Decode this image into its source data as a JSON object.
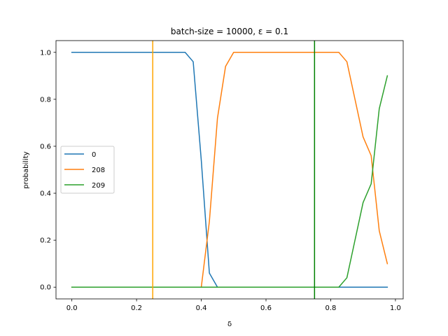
{
  "chart_data": {
    "type": "line",
    "title": "batch-size = 10000, ε = 0.1",
    "xlabel": "δ",
    "ylabel": "probability",
    "xlim": [
      -0.049,
      1.024
    ],
    "ylim": [
      -0.05,
      1.05
    ],
    "xticks": [
      0.0,
      0.2,
      0.4,
      0.6,
      0.8,
      1.0
    ],
    "xtick_labels": [
      "0.0",
      "0.2",
      "0.4",
      "0.6",
      "0.8",
      "1.0"
    ],
    "yticks": [
      0.0,
      0.2,
      0.4,
      0.6,
      0.8,
      1.0
    ],
    "ytick_labels": [
      "0.0",
      "0.2",
      "0.4",
      "0.6",
      "0.8",
      "1.0"
    ],
    "grid": false,
    "legend_position": "center-left",
    "x": [
      0.0,
      0.025,
      0.05,
      0.075,
      0.1,
      0.125,
      0.15,
      0.175,
      0.2,
      0.225,
      0.25,
      0.275,
      0.3,
      0.325,
      0.35,
      0.375,
      0.4,
      0.425,
      0.45,
      0.475,
      0.5,
      0.525,
      0.55,
      0.575,
      0.6,
      0.625,
      0.65,
      0.675,
      0.7,
      0.725,
      0.75,
      0.775,
      0.8,
      0.825,
      0.85,
      0.875,
      0.9,
      0.925,
      0.95,
      0.975
    ],
    "series": [
      {
        "name": "0",
        "color": "#1f77b4",
        "values": [
          1.0,
          1.0,
          1.0,
          1.0,
          1.0,
          1.0,
          1.0,
          1.0,
          1.0,
          1.0,
          1.0,
          1.0,
          1.0,
          1.0,
          1.0,
          0.96,
          0.54,
          0.06,
          0.0,
          0.0,
          0.0,
          0.0,
          0.0,
          0.0,
          0.0,
          0.0,
          0.0,
          0.0,
          0.0,
          0.0,
          0.0,
          0.0,
          0.0,
          0.0,
          0.0,
          0.0,
          0.0,
          0.0,
          0.0,
          0.0
        ]
      },
      {
        "name": "208",
        "color": "#ff7f0e",
        "values": [
          0.0,
          0.0,
          0.0,
          0.0,
          0.0,
          0.0,
          0.0,
          0.0,
          0.0,
          0.0,
          0.0,
          0.0,
          0.0,
          0.0,
          0.0,
          0.0,
          0.0,
          0.28,
          0.72,
          0.94,
          1.0,
          1.0,
          1.0,
          1.0,
          1.0,
          1.0,
          1.0,
          1.0,
          1.0,
          1.0,
          1.0,
          1.0,
          1.0,
          1.0,
          0.96,
          0.8,
          0.64,
          0.56,
          0.24,
          0.1
        ]
      },
      {
        "name": "209",
        "color": "#2ca02c",
        "values": [
          0.0,
          0.0,
          0.0,
          0.0,
          0.0,
          0.0,
          0.0,
          0.0,
          0.0,
          0.0,
          0.0,
          0.0,
          0.0,
          0.0,
          0.0,
          0.0,
          0.0,
          0.0,
          0.0,
          0.0,
          0.0,
          0.0,
          0.0,
          0.0,
          0.0,
          0.0,
          0.0,
          0.0,
          0.0,
          0.0,
          0.0,
          0.0,
          0.0,
          0.0,
          0.04,
          0.2,
          0.36,
          0.44,
          0.76,
          0.9
        ]
      }
    ],
    "vertical_lines": [
      {
        "x": 0.25,
        "color": "#ffa500"
      },
      {
        "x": 0.75,
        "color": "#008000"
      }
    ]
  }
}
